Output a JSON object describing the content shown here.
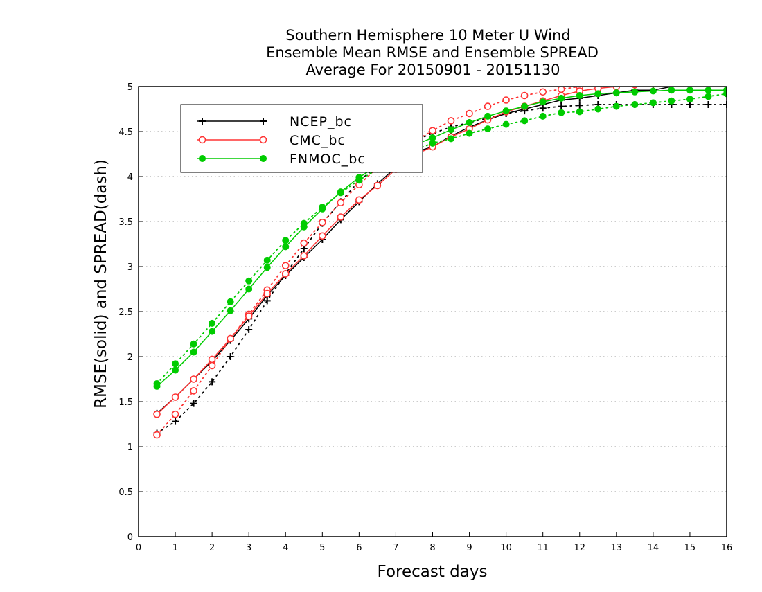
{
  "chart_data": {
    "type": "line",
    "title_lines": [
      "Southern Hemisphere 10 Meter U Wind",
      "Ensemble Mean RMSE and Ensemble SPREAD",
      "Average For 20150901 - 20151130"
    ],
    "xlabel": "Forecast days",
    "ylabel": "RMSE(solid) and SPREAD(dash)",
    "xlim": [
      0,
      16
    ],
    "ylim": [
      0,
      5
    ],
    "xticks": [
      "0",
      "1",
      "2",
      "3",
      "4",
      "5",
      "6",
      "7",
      "8",
      "9",
      "10",
      "11",
      "12",
      "13",
      "14",
      "15",
      "16"
    ],
    "yticks": [
      "0",
      "0.5",
      "1",
      "1.5",
      "2",
      "2.5",
      "3",
      "3.5",
      "4",
      "4.5",
      "5"
    ],
    "grid": "horizontal dotted",
    "legend_placement": "top-left",
    "x": [
      0.5,
      1,
      1.5,
      2,
      2.5,
      3,
      3.5,
      4,
      4.5,
      5,
      5.5,
      6,
      6.5,
      7,
      7.5,
      8,
      8.5,
      9,
      9.5,
      10,
      10.5,
      11,
      11.5,
      12,
      12.5,
      13,
      13.5,
      14,
      14.5,
      15,
      15.5,
      16
    ],
    "series": [
      {
        "name": "NCEP_bc",
        "color": "#000000",
        "marker": "plus",
        "rmse": [
          1.37,
          1.55,
          1.75,
          1.95,
          2.18,
          2.42,
          2.68,
          2.9,
          3.1,
          3.3,
          3.52,
          3.72,
          3.92,
          4.1,
          4.27,
          4.33,
          4.45,
          4.55,
          4.63,
          4.7,
          4.75,
          4.8,
          4.85,
          4.87,
          4.9,
          4.93,
          4.96,
          4.96,
          5.0,
          5.0,
          5.02,
          5.03
        ],
        "spread": [
          1.15,
          1.28,
          1.48,
          1.72,
          2.0,
          2.3,
          2.62,
          2.92,
          3.2,
          3.48,
          3.72,
          3.95,
          4.12,
          4.27,
          4.4,
          4.48,
          4.55,
          4.6,
          4.65,
          4.7,
          4.73,
          4.76,
          4.78,
          4.79,
          4.8,
          4.8,
          4.8,
          4.8,
          4.8,
          4.8,
          4.8,
          4.8
        ]
      },
      {
        "name": "CMC_bc",
        "color": "#ff3333",
        "marker": "open-circle",
        "rmse": [
          1.36,
          1.55,
          1.75,
          1.97,
          2.2,
          2.45,
          2.7,
          2.92,
          3.12,
          3.34,
          3.55,
          3.74,
          3.9,
          4.08,
          4.24,
          4.33,
          4.44,
          4.53,
          4.63,
          4.72,
          4.78,
          4.84,
          4.9,
          4.95,
          4.98,
          5.0,
          5.02,
          5.03,
          5.04,
          5.05,
          5.05,
          5.05
        ],
        "spread": [
          1.13,
          1.36,
          1.62,
          1.9,
          2.2,
          2.47,
          2.74,
          3.01,
          3.26,
          3.49,
          3.71,
          3.91,
          4.1,
          4.26,
          4.39,
          4.51,
          4.62,
          4.7,
          4.78,
          4.85,
          4.9,
          4.94,
          4.97,
          5.0,
          5.02,
          5.03,
          5.04,
          5.05,
          5.05,
          5.05,
          5.05,
          5.05
        ]
      },
      {
        "name": "FNMOC_bc",
        "color": "#00cc00",
        "marker": "filled-circle",
        "rmse": [
          1.67,
          1.85,
          2.05,
          2.28,
          2.51,
          2.75,
          2.99,
          3.22,
          3.44,
          3.64,
          3.83,
          3.99,
          4.12,
          4.24,
          4.35,
          4.43,
          4.52,
          4.6,
          4.67,
          4.73,
          4.78,
          4.83,
          4.87,
          4.9,
          4.92,
          4.93,
          4.94,
          4.95,
          4.96,
          4.96,
          4.96,
          4.96
        ],
        "spread": [
          1.7,
          1.92,
          2.14,
          2.37,
          2.61,
          2.84,
          3.07,
          3.29,
          3.48,
          3.66,
          3.82,
          3.96,
          4.08,
          4.19,
          4.29,
          4.37,
          4.42,
          4.48,
          4.53,
          4.58,
          4.62,
          4.67,
          4.71,
          4.72,
          4.75,
          4.78,
          4.8,
          4.82,
          4.84,
          4.86,
          4.89,
          4.92
        ]
      }
    ]
  }
}
